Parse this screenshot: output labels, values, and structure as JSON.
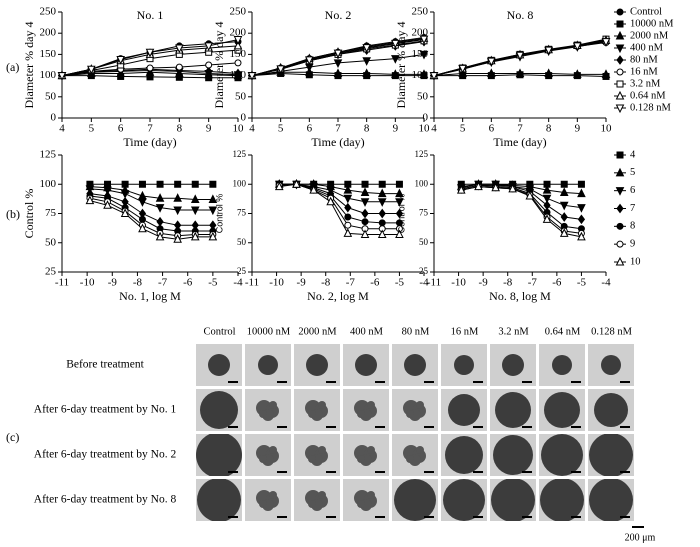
{
  "chart_data": [
    {
      "type": "line",
      "title": "No. 1",
      "ylabel": "Diameter % day 4",
      "xlabel": "Time (day)",
      "color": "#000000",
      "x": [
        4,
        5,
        6,
        7,
        8,
        9,
        10
      ],
      "xlim": [
        4,
        10
      ],
      "xticks": [
        4,
        5,
        6,
        7,
        8,
        9,
        10
      ],
      "ylim": [
        0,
        250
      ],
      "yticks": [
        0,
        50,
        100,
        150,
        200,
        250
      ],
      "series": [
        {
          "marker": "circle",
          "values": [
            100,
            115,
            140,
            155,
            170,
            175,
            180
          ]
        },
        {
          "marker": "square",
          "values": [
            100,
            100,
            98,
            97,
            96,
            95,
            95
          ]
        },
        {
          "marker": "triangle",
          "values": [
            100,
            105,
            105,
            108,
            105,
            102,
            100
          ]
        },
        {
          "marker": "triangle-down",
          "values": [
            100,
            108,
            110,
            112,
            110,
            105,
            102
          ]
        },
        {
          "marker": "diamond",
          "values": [
            100,
            110,
            112,
            115,
            112,
            110,
            105
          ]
        },
        {
          "marker": "circle-open",
          "values": [
            100,
            110,
            115,
            118,
            120,
            125,
            130
          ]
        },
        {
          "marker": "square-open",
          "values": [
            100,
            112,
            125,
            140,
            150,
            155,
            160
          ]
        },
        {
          "marker": "triangle-open",
          "values": [
            100,
            115,
            135,
            150,
            160,
            165,
            170
          ]
        },
        {
          "marker": "triangle-down-open",
          "values": [
            100,
            115,
            138,
            155,
            165,
            170,
            185
          ]
        }
      ]
    },
    {
      "type": "line",
      "title": "No. 2",
      "ylabel": "Diameter % day 4",
      "xlabel": "Time (day)",
      "color": "#000000",
      "x": [
        4,
        5,
        6,
        7,
        8,
        9,
        10
      ],
      "xlim": [
        4,
        10
      ],
      "xticks": [
        4,
        5,
        6,
        7,
        8,
        9,
        10
      ],
      "ylim": [
        0,
        250
      ],
      "yticks": [
        0,
        50,
        100,
        150,
        200,
        250
      ],
      "series": [
        {
          "marker": "circle",
          "values": [
            100,
            118,
            140,
            155,
            170,
            180,
            190
          ]
        },
        {
          "marker": "square",
          "values": [
            100,
            105,
            102,
            100,
            100,
            100,
            100
          ]
        },
        {
          "marker": "triangle",
          "values": [
            100,
            108,
            108,
            105,
            105,
            103,
            103
          ]
        },
        {
          "marker": "triangle-down",
          "values": [
            100,
            110,
            120,
            130,
            135,
            140,
            150
          ]
        },
        {
          "marker": "diamond",
          "values": [
            100,
            115,
            135,
            150,
            160,
            170,
            180
          ]
        },
        {
          "marker": "circle-open",
          "values": [
            100,
            117,
            138,
            152,
            165,
            175,
            185
          ]
        },
        {
          "marker": "square-open",
          "values": [
            100,
            115,
            135,
            150,
            163,
            172,
            182
          ]
        },
        {
          "marker": "triangle-open",
          "values": [
            100,
            118,
            140,
            155,
            168,
            178,
            188
          ]
        },
        {
          "marker": "triangle-down-open",
          "values": [
            100,
            116,
            137,
            153,
            166,
            176,
            186
          ]
        }
      ]
    },
    {
      "type": "line",
      "title": "No. 8",
      "ylabel": "Diameter % day 4",
      "xlabel": "Time (day)",
      "color": "#000000",
      "x": [
        4,
        5,
        6,
        7,
        8,
        9,
        10
      ],
      "xlim": [
        4,
        10
      ],
      "xticks": [
        4,
        5,
        6,
        7,
        8,
        9,
        10
      ],
      "ylim": [
        0,
        250
      ],
      "yticks": [
        0,
        50,
        100,
        150,
        200,
        250
      ],
      "legend": "right",
      "series": [
        {
          "name": "Control",
          "marker": "circle",
          "values": [
            100,
            118,
            135,
            150,
            160,
            170,
            185
          ]
        },
        {
          "name": "10000 nM",
          "marker": "square",
          "values": [
            100,
            100,
            100,
            102,
            100,
            100,
            98
          ]
        },
        {
          "name": "2000 nM",
          "marker": "triangle",
          "values": [
            100,
            105,
            105,
            105,
            105,
            103,
            103
          ]
        },
        {
          "name": "400 nM",
          "marker": "triangle-down",
          "values": [
            100,
            116,
            132,
            145,
            158,
            168,
            180
          ]
        },
        {
          "name": "80 nM",
          "marker": "diamond",
          "values": [
            100,
            117,
            134,
            148,
            160,
            170,
            182
          ]
        },
        {
          "name": "16 nM",
          "marker": "circle-open",
          "values": [
            100,
            115,
            133,
            147,
            159,
            169,
            178
          ]
        },
        {
          "name": "3.2 nM",
          "marker": "square-open",
          "values": [
            100,
            118,
            136,
            150,
            162,
            172,
            186
          ]
        },
        {
          "name": "0.64 nM",
          "marker": "triangle-open",
          "values": [
            100,
            116,
            135,
            149,
            161,
            171,
            183
          ]
        },
        {
          "name": "0.128 nM",
          "marker": "triangle-down-open",
          "values": [
            100,
            117,
            134,
            148,
            160,
            170,
            180
          ]
        }
      ]
    },
    {
      "type": "line",
      "ylabel": "Control %",
      "xlabel": "No. 1, log M",
      "color": "#000000",
      "x": [
        -9.89,
        -9.19,
        -8.49,
        -7.8,
        -7.1,
        -6.4,
        -5.7,
        -5
      ],
      "xlim": [
        -11,
        -4
      ],
      "xticks": [
        -11,
        -10,
        -9,
        -8,
        -7,
        -6,
        -5,
        -4
      ],
      "ylim": [
        25,
        125
      ],
      "yticks": [
        25,
        50,
        75,
        100,
        125
      ],
      "series": [
        {
          "marker": "square",
          "values": [
            100,
            100,
            100,
            100,
            100,
            100,
            100,
            100
          ]
        },
        {
          "marker": "triangle",
          "values": [
            98,
            97,
            95,
            90,
            88,
            88,
            87,
            87
          ]
        },
        {
          "marker": "triangle-down",
          "values": [
            96,
            95,
            92,
            85,
            80,
            78,
            78,
            78
          ]
        },
        {
          "marker": "diamond",
          "values": [
            92,
            90,
            85,
            75,
            68,
            65,
            65,
            65
          ]
        },
        {
          "marker": "circle",
          "values": [
            90,
            88,
            80,
            70,
            62,
            60,
            60,
            60
          ]
        },
        {
          "marker": "circle-open",
          "values": [
            88,
            85,
            77,
            65,
            58,
            56,
            57,
            57
          ]
        },
        {
          "marker": "triangle-open",
          "values": [
            86,
            82,
            75,
            62,
            55,
            53,
            55,
            55
          ]
        }
      ]
    },
    {
      "type": "line",
      "ylabel": "Control %",
      "xlabel": "No. 2, log M",
      "color": "#000000",
      "x": [
        -9.89,
        -9.19,
        -8.49,
        -7.8,
        -7.1,
        -6.4,
        -5.7,
        -5
      ],
      "xlim": [
        -11,
        -4
      ],
      "xticks": [
        -11,
        -10,
        -9,
        -8,
        -7,
        -6,
        -5,
        -4
      ],
      "ylim": [
        25,
        125
      ],
      "yticks": [
        25,
        50,
        75,
        100,
        125
      ],
      "series": [
        {
          "marker": "square",
          "values": [
            100,
            100,
            100,
            100,
            100,
            100,
            100,
            100
          ]
        },
        {
          "marker": "triangle",
          "values": [
            100,
            100,
            100,
            98,
            95,
            93,
            92,
            92
          ]
        },
        {
          "marker": "triangle-down",
          "values": [
            100,
            100,
            98,
            95,
            88,
            85,
            85,
            85
          ]
        },
        {
          "marker": "diamond",
          "values": [
            100,
            100,
            97,
            92,
            80,
            75,
            75,
            75
          ]
        },
        {
          "marker": "circle",
          "values": [
            100,
            100,
            96,
            90,
            72,
            68,
            67,
            67
          ]
        },
        {
          "marker": "circle-open",
          "values": [
            99,
            100,
            95,
            88,
            65,
            62,
            62,
            62
          ]
        },
        {
          "marker": "triangle-open",
          "values": [
            98,
            100,
            95,
            85,
            58,
            57,
            57,
            57
          ]
        }
      ]
    },
    {
      "type": "line",
      "ylabel": "Control %",
      "xlabel": "No. 8, log M",
      "color": "#000000",
      "x": [
        -9.89,
        -9.19,
        -8.49,
        -7.8,
        -7.1,
        -6.4,
        -5.7,
        -5
      ],
      "xlim": [
        -11,
        -4
      ],
      "xticks": [
        -11,
        -10,
        -9,
        -8,
        -7,
        -6,
        -5,
        -4
      ],
      "ylim": [
        25,
        125
      ],
      "yticks": [
        25,
        50,
        75,
        100,
        125
      ],
      "legend": "right",
      "series": [
        {
          "name": "4",
          "marker": "square",
          "values": [
            100,
            100,
            100,
            100,
            100,
            100,
            100,
            100
          ]
        },
        {
          "name": "5",
          "marker": "triangle",
          "values": [
            98,
            100,
            100,
            99,
            98,
            95,
            93,
            92
          ]
        },
        {
          "name": "6",
          "marker": "triangle-down",
          "values": [
            97,
            100,
            100,
            98,
            96,
            88,
            82,
            80
          ]
        },
        {
          "name": "7",
          "marker": "diamond",
          "values": [
            96,
            99,
            99,
            98,
            94,
            82,
            72,
            70
          ]
        },
        {
          "name": "8",
          "marker": "circle",
          "values": [
            96,
            99,
            98,
            97,
            92,
            76,
            64,
            62
          ]
        },
        {
          "name": "9",
          "marker": "circle-open",
          "values": [
            95,
            98,
            97,
            96,
            91,
            72,
            60,
            58
          ]
        },
        {
          "name": "10",
          "marker": "triangle-open",
          "values": [
            95,
            98,
            97,
            96,
            90,
            70,
            58,
            55
          ]
        }
      ]
    }
  ],
  "panel_labels": [
    "(a)",
    "(b)",
    "(c)"
  ],
  "panel_c": {
    "columns": [
      "Control",
      "10000 nM",
      "2000 nM",
      "400 nM",
      "80 nM",
      "16 nM",
      "3.2 nM",
      "0.64 nM",
      "0.128 nM"
    ],
    "rows": [
      "Before treatment",
      "After 6-day treatment by No. 1",
      "After 6-day treatment by No. 2",
      "After 6-day treatment by No. 8"
    ],
    "scale_label": "200 μm"
  }
}
